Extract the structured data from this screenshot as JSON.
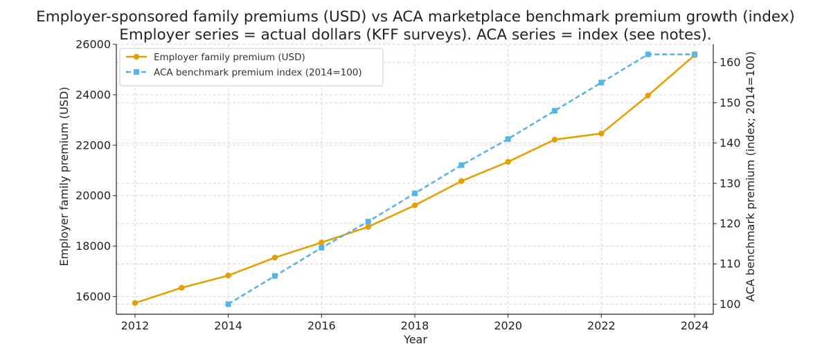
{
  "chart_data": {
    "type": "line",
    "title": "Employer-sponsored family premiums (USD) vs ACA marketplace benchmark premium growth (index)",
    "subtitle": "Employer series = actual dollars (KFF surveys). ACA series = index (see notes).",
    "xlabel": "Year",
    "ylabel_left": "Employer family premium (USD)",
    "ylabel_right": "ACA benchmark premium (index; 2014=100)",
    "xlim": [
      2011.6,
      2024.4
    ],
    "ylim_left": [
      15300,
      26000
    ],
    "ylim_right": [
      97.5,
      164.5
    ],
    "x_ticks": [
      2012,
      2014,
      2016,
      2018,
      2020,
      2022,
      2024
    ],
    "y_ticks_left": [
      16000,
      18000,
      20000,
      22000,
      24000,
      26000
    ],
    "y_ticks_right": [
      100,
      110,
      120,
      130,
      140,
      150,
      160
    ],
    "grid": true,
    "legend_position": "top-left",
    "series": [
      {
        "name": "Employer family premium (USD)",
        "axis": "left",
        "color": "#E69F00",
        "marker": "circle",
        "line_style": "solid",
        "x": [
          2012,
          2013,
          2014,
          2015,
          2016,
          2017,
          2018,
          2019,
          2020,
          2021,
          2022,
          2023,
          2024
        ],
        "values": [
          15745,
          16351,
          16834,
          17545,
          18142,
          18764,
          19616,
          20576,
          21342,
          22221,
          22463,
          23968,
          25572
        ]
      },
      {
        "name": "ACA benchmark premium index (2014=100)",
        "axis": "right",
        "color": "#56B4E9",
        "marker": "square",
        "line_style": "dashed",
        "x": [
          2014,
          2015,
          2016,
          2017,
          2018,
          2019,
          2020,
          2021,
          2022,
          2023,
          2024
        ],
        "values": [
          100,
          107,
          114,
          120.5,
          127.5,
          134.5,
          141,
          148,
          155,
          162,
          162
        ]
      }
    ]
  }
}
